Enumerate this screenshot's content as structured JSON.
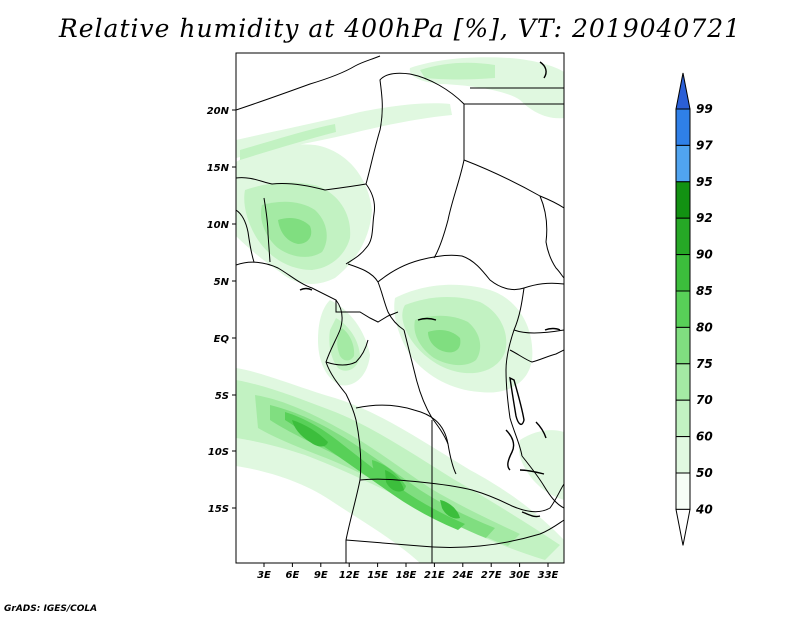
{
  "title": "Relative humidity at 400hPa [%], VT: 2019040721",
  "credit": "GrADS: IGES/COLA",
  "map": {
    "lat_labels": [
      "20N",
      "15N",
      "10N",
      "5N",
      "EQ",
      "5S",
      "10S",
      "15S"
    ],
    "lon_labels": [
      "3E",
      "6E",
      "9E",
      "12E",
      "15E",
      "18E",
      "21E",
      "24E",
      "27E",
      "30E",
      "33E"
    ],
    "extent": {
      "lon_min": 0,
      "lon_max": 35,
      "lat_min": -19,
      "lat_max": 24
    }
  },
  "colorbar": {
    "levels": [
      "99",
      "97",
      "95",
      "92",
      "90",
      "85",
      "80",
      "75",
      "70",
      "60",
      "50",
      "40"
    ],
    "colors": [
      "#2b5fd6",
      "#2f80e8",
      "#50a4f0",
      "#129112",
      "#26a826",
      "#3cbe3c",
      "#58d058",
      "#80de80",
      "#a4eaa4",
      "#c2f2c2",
      "#e0f8e0",
      "#f6fdf6",
      "#ffffff"
    ]
  }
}
